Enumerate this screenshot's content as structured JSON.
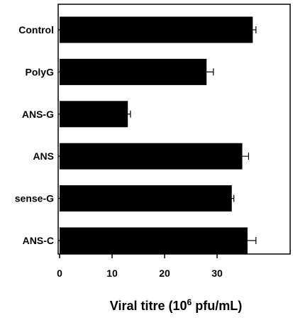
{
  "chart_data": {
    "type": "bar",
    "orientation": "horizontal",
    "categories": [
      "Control",
      "PolyG",
      "ANS-G",
      "ANS",
      "sense-G",
      "ANS-C"
    ],
    "values": [
      36.8,
      28.0,
      13.0,
      34.8,
      32.8,
      35.8
    ],
    "errors": [
      0.6,
      1.3,
      0.5,
      1.2,
      0.4,
      1.6
    ],
    "xlabel": {
      "prefix": "Viral titre (10",
      "superscript": "6",
      "suffix": " pfu/mL)"
    },
    "xlim": [
      0,
      40
    ],
    "xticks": [
      "0",
      "10",
      "20",
      "30"
    ],
    "bar_color": "#000000",
    "grid": false,
    "legend": "none"
  }
}
